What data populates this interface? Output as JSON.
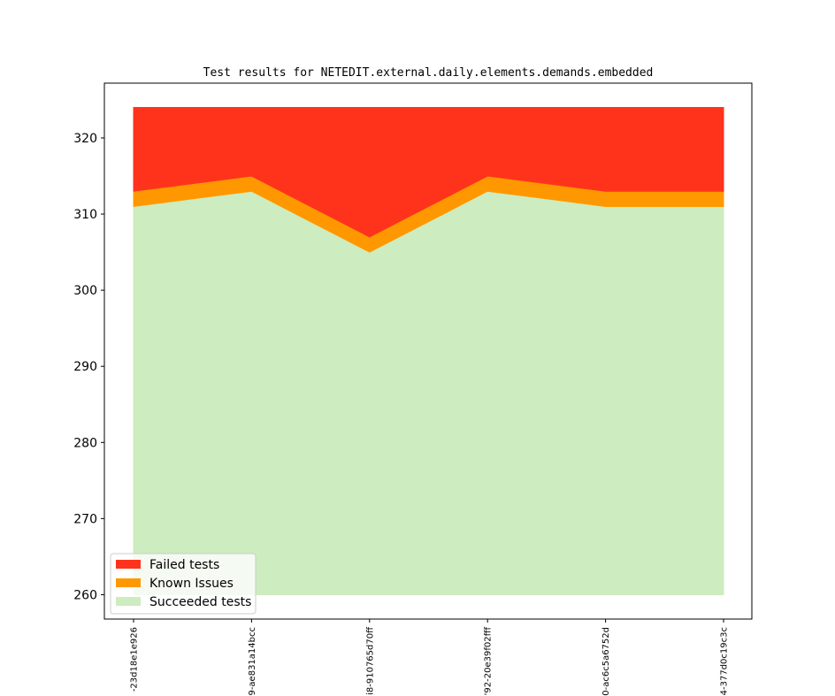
{
  "chart_data": {
    "type": "area",
    "title": "Test results for NETEDIT.external.daily.elements.demands.embedded",
    "xlabel": "",
    "ylabel": "",
    "categories": [
      "-23d18e1e926",
      "9-ae831a14bcc",
      "i8-910765d70ff",
      "'92-20e39f02fff",
      "0-ac6c5a6752d",
      "4-377d0c19c3c"
    ],
    "ylim": [
      256.8,
      327.2
    ],
    "yticks": [
      260,
      270,
      280,
      290,
      300,
      310,
      320
    ],
    "baseline": 260,
    "series": [
      {
        "name": "Succeeded tests",
        "color": "#cdecbf",
        "values": [
          311,
          313,
          305,
          313,
          311,
          311
        ]
      },
      {
        "name": "Known Issues",
        "color": "#ff9800",
        "values": [
          2,
          2,
          2,
          2,
          2,
          2
        ]
      },
      {
        "name": "Failed tests",
        "color": "#ff331c",
        "values": [
          11,
          9,
          17,
          9,
          11,
          11
        ]
      }
    ],
    "legend_order": [
      "Failed tests",
      "Known Issues",
      "Succeeded tests"
    ],
    "legend_position": "lower-left",
    "grid": false
  }
}
